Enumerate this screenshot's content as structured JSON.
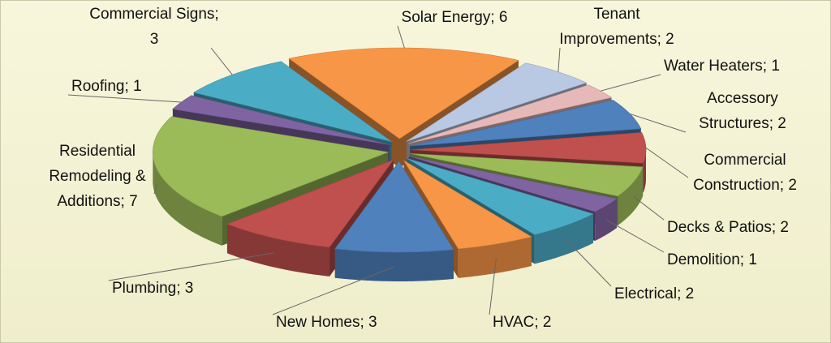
{
  "chart_data": {
    "type": "pie",
    "values": [
      6,
      2,
      1,
      2,
      2,
      2,
      1,
      2,
      2,
      3,
      3,
      7,
      1,
      3
    ],
    "value_labels": [
      "Solar Energy; 6",
      "Tenant Improvements; 2",
      "Water Heaters; 1",
      "Accessory Structures; 2",
      "Commercial Construction; 2",
      "Decks & Patios; 2",
      "Demolition; 1",
      "Electrical; 2",
      "HVAC; 2",
      "New Homes; 3",
      "Plumbing; 3",
      "Residential Remodeling & Additions; 7",
      "Roofing; 1",
      "Commercial Signs; 3"
    ],
    "colors": [
      "#f79646",
      "#b9c8e3",
      "#e6b9b8",
      "#4f81bd",
      "#c0504d",
      "#9bbb59",
      "#8064a2",
      "#4bacc6",
      "#f79646",
      "#4f81bd",
      "#c0504d",
      "#9bbb59",
      "#8064a2",
      "#4bacc6"
    ]
  }
}
